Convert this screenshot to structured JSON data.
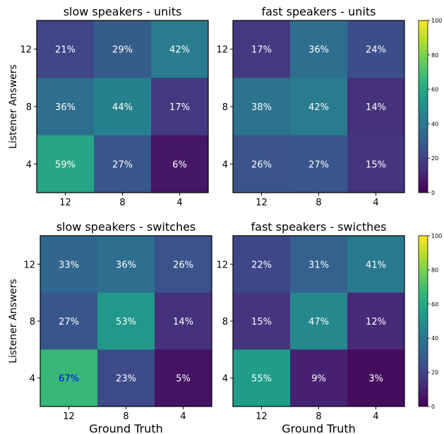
{
  "chart_data": [
    {
      "type": "heatmap",
      "title": "slow speakers - units",
      "xlabel": "",
      "ylabel": "Listener Answers",
      "x_categories": [
        "12",
        "8",
        "4"
      ],
      "y_categories": [
        "12",
        "8",
        "4"
      ],
      "values": [
        [
          21,
          29,
          42
        ],
        [
          36,
          44,
          17
        ],
        [
          59,
          27,
          6
        ]
      ],
      "cell_labels": [
        [
          "21%",
          "29%",
          "42%"
        ],
        [
          "36%",
          "44%",
          "17%"
        ],
        [
          "59%",
          "27%",
          "6%"
        ]
      ]
    },
    {
      "type": "heatmap",
      "title": "fast speakers - units",
      "xlabel": "",
      "ylabel": "",
      "x_categories": [
        "12",
        "8",
        "4"
      ],
      "y_categories": [
        "12",
        "8",
        "4"
      ],
      "values": [
        [
          17,
          36,
          24
        ],
        [
          38,
          42,
          14
        ],
        [
          26,
          27,
          15
        ]
      ],
      "cell_labels": [
        [
          "17%",
          "36%",
          "24%"
        ],
        [
          "38%",
          "42%",
          "14%"
        ],
        [
          "26%",
          "27%",
          "15%"
        ]
      ]
    },
    {
      "type": "heatmap",
      "title": "slow speakers - switches",
      "xlabel": "Ground Truth",
      "ylabel": "Listener Answers",
      "x_categories": [
        "12",
        "8",
        "4"
      ],
      "y_categories": [
        "12",
        "8",
        "4"
      ],
      "values": [
        [
          33,
          36,
          26
        ],
        [
          27,
          53,
          14
        ],
        [
          67,
          23,
          5
        ]
      ],
      "cell_labels": [
        [
          "33%",
          "36%",
          "26%"
        ],
        [
          "27%",
          "53%",
          "14%"
        ],
        [
          "67%",
          "23%",
          "5%"
        ]
      ]
    },
    {
      "type": "heatmap",
      "title": "fast speakers - swicthes",
      "xlabel": "Ground Truth",
      "ylabel": "",
      "x_categories": [
        "12",
        "8",
        "4"
      ],
      "y_categories": [
        "12",
        "8",
        "4"
      ],
      "values": [
        [
          22,
          31,
          41
        ],
        [
          15,
          47,
          12
        ],
        [
          55,
          9,
          3
        ]
      ],
      "cell_labels": [
        [
          "22%",
          "31%",
          "41%"
        ],
        [
          "15%",
          "47%",
          "12%"
        ],
        [
          "55%",
          "9%",
          "3%"
        ]
      ]
    }
  ],
  "colorbar": {
    "colormap": "viridis",
    "range": [
      0,
      100
    ],
    "ticks": [
      "0",
      "20",
      "40",
      "60",
      "80",
      "100"
    ]
  },
  "cell_text_colors": {
    "default": "#ffffff",
    "highlight": "#0000ff",
    "highlight_cell": {
      "panel": 2,
      "row": 2,
      "col": 0
    }
  }
}
